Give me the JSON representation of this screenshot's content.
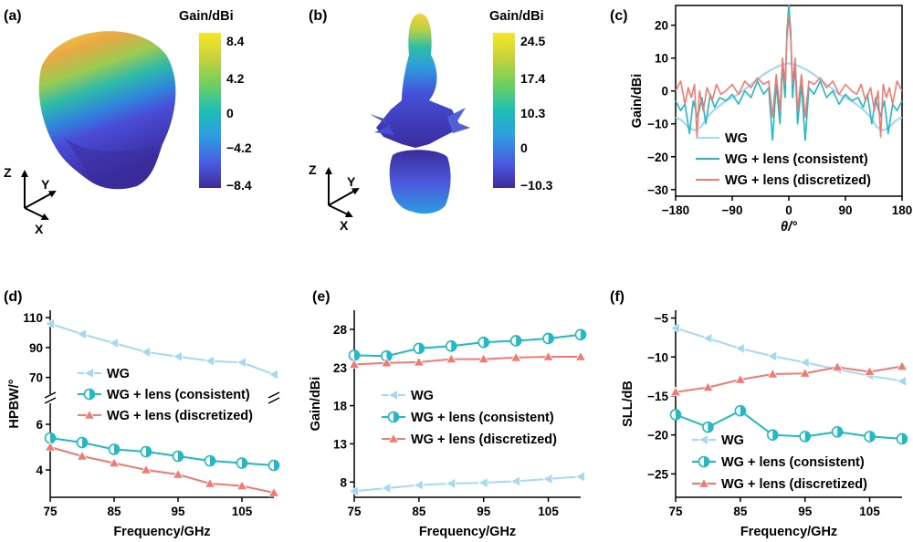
{
  "colors": {
    "wg": "#A6D8F0",
    "consistent": "#22B8C4",
    "discretized": "#EF7B72",
    "axis": "#000000"
  },
  "colormap": [
    "#3E2A96",
    "#4A5CE0",
    "#2E9BE0",
    "#1FC0B4",
    "#6FD060",
    "#C8D23A",
    "#F7E62A"
  ],
  "panel_a": {
    "label": "(a)",
    "colorbar": {
      "title": "Gain/dBi",
      "ticks": [
        "8.4",
        "4.2",
        "0",
        "−4.2",
        "−8.4"
      ]
    },
    "axes": {
      "z": "Z",
      "y": "Y",
      "x": "X"
    }
  },
  "panel_b": {
    "label": "(b)",
    "colorbar": {
      "title": "Gain/dBi",
      "ticks": [
        "24.5",
        "17.4",
        "10.3",
        "0",
        "−10.3"
      ]
    },
    "axes": {
      "z": "Z",
      "y": "Y",
      "x": "X"
    }
  },
  "chart_data": [
    {
      "id": "c",
      "label": "(c)",
      "type": "line",
      "xlabel": "θ/°",
      "ylabel": "Gain/dBi",
      "xlim": [
        -180,
        180
      ],
      "ylim": [
        -32,
        26
      ],
      "xticks": [
        -180,
        -90,
        0,
        90,
        180
      ],
      "yticks": [
        -30,
        -20,
        -10,
        0,
        10,
        20
      ],
      "legend": "bottom-right",
      "series": [
        {
          "name": "WG",
          "color": "#A6D8F0",
          "x": [
            -180,
            -170,
            -160,
            -150,
            -140,
            -130,
            -120,
            -110,
            -100,
            -90,
            -80,
            -70,
            -60,
            -50,
            -40,
            -30,
            -20,
            -10,
            0,
            10,
            20,
            30,
            40,
            50,
            60,
            70,
            80,
            90,
            100,
            110,
            120,
            130,
            140,
            150,
            160,
            170,
            180
          ],
          "y": [
            -8,
            -9,
            -11,
            -12,
            -11,
            -8,
            -6,
            -4.5,
            -3,
            -2,
            -1,
            0.5,
            2,
            3.5,
            5,
            6.2,
            7.2,
            8,
            8.4,
            8,
            7.2,
            6.2,
            5,
            3.5,
            2,
            0.5,
            -1,
            -2,
            -3,
            -4.5,
            -6,
            -8,
            -11,
            -12,
            -11,
            -9,
            -8
          ]
        },
        {
          "name": "WG + lens (consistent)",
          "color": "#22B8C4",
          "x": [
            -180,
            -172,
            -165,
            -158,
            -152,
            -145,
            -138,
            -132,
            -125,
            -118,
            -110,
            -100,
            -90,
            -80,
            -70,
            -60,
            -50,
            -40,
            -32,
            -26,
            -20,
            -14,
            -10,
            -6,
            -3,
            0,
            3,
            6,
            10,
            14,
            20,
            26,
            32,
            40,
            50,
            60,
            70,
            80,
            90,
            100,
            110,
            118,
            125,
            132,
            138,
            145,
            152,
            158,
            165,
            172,
            180
          ],
          "y": [
            -3,
            -6,
            -4,
            -13,
            -3,
            -8,
            -2,
            -10,
            -1,
            -5,
            -2,
            -3,
            -1,
            -4,
            0,
            -2,
            3,
            -1,
            1,
            -15,
            2,
            -10,
            8,
            -2,
            18,
            26,
            18,
            -2,
            8,
            -10,
            2,
            -15,
            1,
            -1,
            3,
            -2,
            0,
            -4,
            -1,
            -3,
            -2,
            -5,
            -1,
            -10,
            -2,
            -8,
            -3,
            -13,
            -4,
            -6,
            -3
          ]
        },
        {
          "name": "WG + lens (discretized)",
          "color": "#EF7B72",
          "x": [
            -180,
            -172,
            -165,
            -160,
            -155,
            -150,
            -146,
            -142,
            -136,
            -130,
            -122,
            -115,
            -108,
            -100,
            -90,
            -80,
            -70,
            -60,
            -50,
            -40,
            -32,
            -26,
            -20,
            -14,
            -10,
            -6,
            -3,
            0,
            3,
            6,
            10,
            14,
            20,
            26,
            32,
            40,
            50,
            60,
            70,
            80,
            90,
            100,
            108,
            115,
            122,
            130,
            136,
            142,
            146,
            150,
            155,
            160,
            165,
            172,
            180
          ],
          "y": [
            0,
            3,
            -4,
            1,
            -2,
            2,
            -14,
            0,
            -6,
            1,
            -3,
            2,
            -1,
            0,
            2,
            -1,
            3,
            1,
            4,
            2,
            3,
            -8,
            5,
            -6,
            10,
            2,
            16,
            23,
            16,
            2,
            10,
            -6,
            5,
            -8,
            3,
            2,
            4,
            1,
            3,
            -1,
            2,
            0,
            -1,
            2,
            -3,
            1,
            -6,
            0,
            -14,
            2,
            -2,
            1,
            -4,
            3,
            0
          ]
        }
      ]
    },
    {
      "id": "d",
      "label": "(d)",
      "type": "line",
      "xlabel": "Frequency/GHz",
      "ylabel": "HPBW/°",
      "xlim": [
        75,
        110
      ],
      "xticks": [
        75,
        85,
        95,
        105
      ],
      "broken_axis": true,
      "upper_ylim": [
        60,
        115
      ],
      "upper_yticks": [
        70,
        90,
        110
      ],
      "lower_ylim": [
        2.8,
        6.8
      ],
      "lower_yticks": [
        4,
        6
      ],
      "legend": "center-left",
      "categories": [
        75,
        80,
        85,
        90,
        95,
        100,
        105,
        110
      ],
      "series": [
        {
          "name": "WG",
          "color": "#A6D8F0",
          "marker": "left-triangle",
          "axis": "upper",
          "values": [
            106,
            99,
            93,
            87,
            84,
            81,
            80,
            72
          ]
        },
        {
          "name": "WG + lens (consistent)",
          "color": "#22B8C4",
          "marker": "half-circle",
          "axis": "lower",
          "values": [
            5.4,
            5.2,
            4.9,
            4.8,
            4.6,
            4.4,
            4.3,
            4.2
          ]
        },
        {
          "name": "WG + lens (discretized)",
          "color": "#EF7B72",
          "marker": "triangle",
          "axis": "lower",
          "values": [
            5.0,
            4.6,
            4.3,
            4.0,
            3.8,
            3.4,
            3.3,
            3.0
          ]
        }
      ]
    },
    {
      "id": "e",
      "label": "(e)",
      "type": "line",
      "xlabel": "Frequency/GHz",
      "ylabel": "Gain/dBi",
      "xlim": [
        75,
        110
      ],
      "ylim": [
        6,
        30.5
      ],
      "xticks": [
        75,
        85,
        95,
        105
      ],
      "yticks": [
        8,
        13,
        18,
        23,
        28
      ],
      "legend": "center",
      "categories": [
        75,
        80,
        85,
        90,
        95,
        100,
        105,
        110
      ],
      "series": [
        {
          "name": "WG",
          "color": "#A6D8F0",
          "marker": "left-triangle",
          "values": [
            6.8,
            7.2,
            7.6,
            7.8,
            7.9,
            8.1,
            8.4,
            8.7
          ]
        },
        {
          "name": "WG + lens (consistent)",
          "color": "#22B8C4",
          "marker": "half-circle",
          "values": [
            24.6,
            24.5,
            25.5,
            25.8,
            26.3,
            26.5,
            26.8,
            27.3
          ]
        },
        {
          "name": "WG + lens (discretized)",
          "color": "#EF7B72",
          "marker": "triangle",
          "values": [
            23.4,
            23.6,
            23.7,
            24.1,
            24.1,
            24.3,
            24.4,
            24.4
          ]
        }
      ]
    },
    {
      "id": "f",
      "label": "(f)",
      "type": "line",
      "xlabel": "Frequency/GHz",
      "ylabel": "SLL/dB",
      "xlim": [
        75,
        110
      ],
      "ylim": [
        -28,
        -4
      ],
      "xticks": [
        75,
        85,
        95,
        105
      ],
      "yticks": [
        -25,
        -20,
        -15,
        -10,
        -5
      ],
      "legend": "bottom-center",
      "categories": [
        75,
        80,
        85,
        90,
        95,
        100,
        105,
        110
      ],
      "series": [
        {
          "name": "WG",
          "color": "#A6D8F0",
          "marker": "left-triangle",
          "values": [
            -6.3,
            -7.6,
            -8.9,
            -9.9,
            -10.7,
            -11.6,
            -12.4,
            -13.1
          ]
        },
        {
          "name": "WG + lens (consistent)",
          "color": "#22B8C4",
          "marker": "half-circle",
          "values": [
            -17.4,
            -19.0,
            -16.9,
            -20.0,
            -20.2,
            -19.6,
            -20.2,
            -20.5
          ]
        },
        {
          "name": "WG + lens (discretized)",
          "color": "#EF7B72",
          "marker": "triangle",
          "values": [
            -14.5,
            -13.9,
            -12.9,
            -12.2,
            -12.1,
            -11.3,
            -11.9,
            -11.2
          ]
        }
      ]
    }
  ]
}
